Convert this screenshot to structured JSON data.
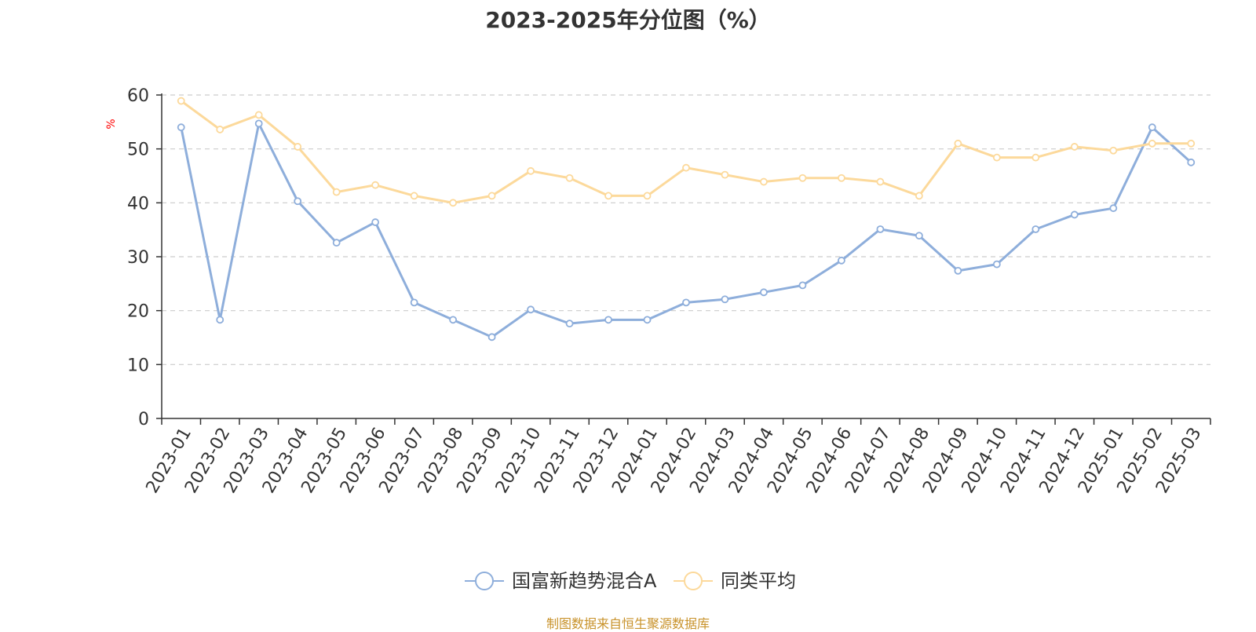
{
  "chart_data": {
    "type": "line",
    "title": "2023-2025年分位图（%）",
    "ylabel": "%",
    "ylim": [
      0,
      60
    ],
    "yticks": [
      0,
      10,
      20,
      30,
      40,
      50,
      60
    ],
    "grid": true,
    "legend_position": "bottom",
    "categories": [
      "2023-01",
      "2023-02",
      "2023-03",
      "2023-04",
      "2023-05",
      "2023-06",
      "2023-07",
      "2023-08",
      "2023-09",
      "2023-10",
      "2023-11",
      "2023-12",
      "2024-01",
      "2024-02",
      "2024-03",
      "2024-04",
      "2024-05",
      "2024-06",
      "2024-07",
      "2024-08",
      "2024-09",
      "2024-10",
      "2024-11",
      "2024-12",
      "2025-01",
      "2025-02",
      "2025-03"
    ],
    "series": [
      {
        "name": "国富新趋势混合A",
        "color": "#8eaedb",
        "values": [
          54.0,
          18.3,
          54.7,
          40.3,
          32.6,
          36.4,
          21.5,
          18.3,
          15.1,
          20.2,
          17.6,
          18.3,
          18.3,
          21.5,
          22.1,
          23.4,
          24.7,
          29.3,
          35.1,
          33.9,
          27.4,
          28.6,
          35.1,
          37.8,
          39.0,
          54.0,
          47.5
        ]
      },
      {
        "name": "同类平均",
        "color": "#fcd99b",
        "values": [
          58.9,
          53.6,
          56.3,
          50.4,
          42.0,
          43.3,
          41.3,
          40.0,
          41.3,
          45.9,
          44.6,
          41.3,
          41.3,
          46.5,
          45.2,
          43.9,
          44.6,
          44.6,
          43.9,
          41.3,
          51.0,
          48.4,
          48.4,
          50.4,
          49.7,
          51.0,
          51.0
        ]
      }
    ]
  },
  "source_note": "制图数据来自恒生聚源数据库",
  "colors": {
    "title": "#333333",
    "axis": "#333333",
    "grid": "#cccccc",
    "ylabel": "#ff0000",
    "source": "#c8922a"
  }
}
